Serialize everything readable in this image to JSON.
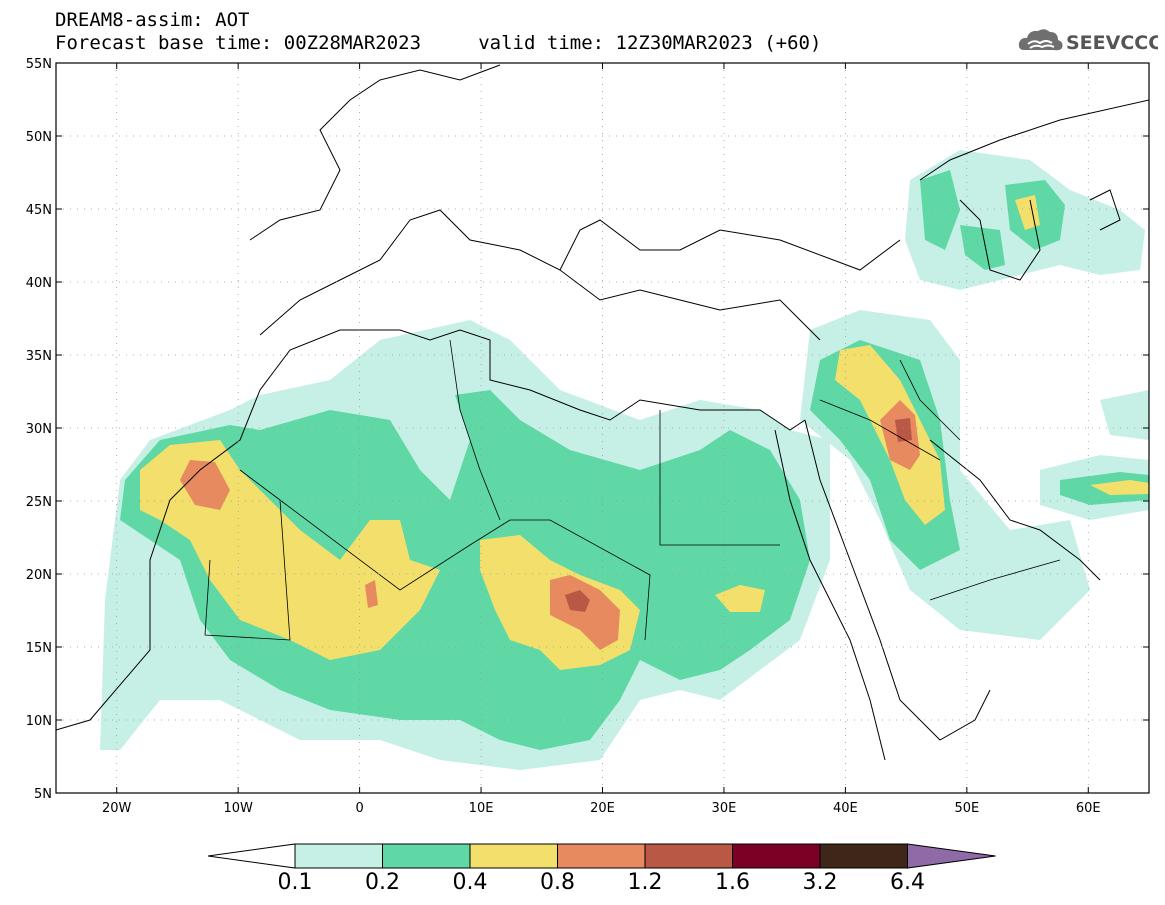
{
  "header": {
    "line1": "DREAM8-assim: AOT",
    "line2": "Forecast base time: 00Z28MAR2023     valid time: 12Z30MAR2023 (+60)",
    "logo_text": "SEEVCCC"
  },
  "map": {
    "lat_ticks": [
      "55N",
      "50N",
      "45N",
      "40N",
      "35N",
      "30N",
      "25N",
      "20N",
      "15N",
      "10N",
      "5N"
    ],
    "lon_ticks": [
      "20W",
      "10W",
      "0",
      "10E",
      "20E",
      "30E",
      "40E",
      "50E",
      "60E"
    ],
    "extent": {
      "lon_min": -25,
      "lon_max": 65,
      "lat_min": 5,
      "lat_max": 55
    }
  },
  "colorbar": {
    "labels": [
      "0.1",
      "0.2",
      "0.4",
      "0.8",
      "1.2",
      "1.6",
      "3.2",
      "6.4"
    ],
    "colors": [
      "#c6f0e6",
      "#5fd8a6",
      "#f3e06c",
      "#e88a60",
      "#b95844",
      "#7b0026",
      "#3e2718",
      "#8e6aa6"
    ],
    "under_color": "#ffffff"
  }
}
